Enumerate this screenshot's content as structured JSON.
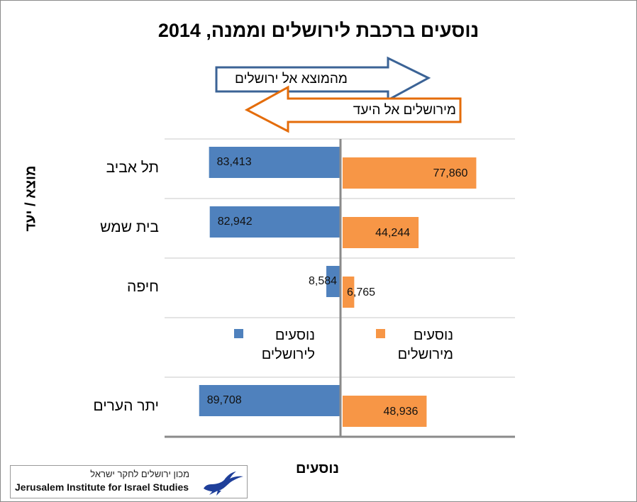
{
  "chart_data": {
    "type": "bar",
    "title": "נוסעים ברכבת לירושלים וממנה, 2014",
    "ylabel": "מוצא / יעד",
    "xlabel": "נוסעים",
    "arrows": [
      "מהמוצא אל ירושלים",
      "מירושלים אל היעד"
    ],
    "categories": [
      "תל אביב",
      "בית שמש",
      "חיפה",
      "יתר הערים"
    ],
    "series": [
      {
        "name": "נוסעים לירושלים",
        "color": "#4f81bd",
        "values": [
          83413,
          82942,
          8584,
          89708
        ],
        "labels": [
          "83,413",
          "82,942",
          "8,584",
          "89,708"
        ]
      },
      {
        "name": "נוסעים מירושלים",
        "color": "#f79646",
        "values": [
          77860,
          44244,
          6765,
          48936
        ],
        "labels": [
          "77,860",
          "44,244",
          "6,765",
          "48,936"
        ]
      }
    ],
    "legend": [
      {
        "line1": "נוסעים",
        "line2": "לירושלים"
      },
      {
        "line1": "נוסעים",
        "line2": "מירושלים"
      }
    ],
    "xlim": [
      0,
      100000
    ],
    "legend_position": "inside-fourth-row"
  },
  "logo": {
    "hebrew": "מכון ירושלים לחקר ישראל",
    "english": "Jerusalem Institute for Israel Studies"
  }
}
